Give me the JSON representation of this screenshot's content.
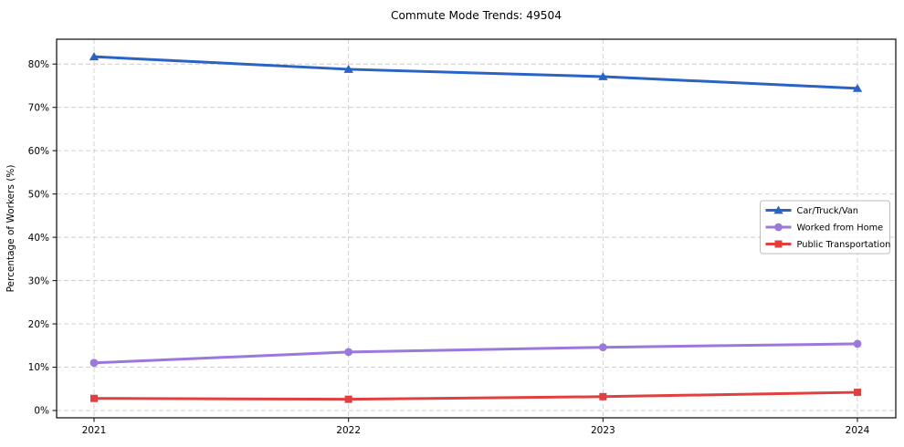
{
  "chart_data": {
    "type": "line",
    "title": "Commute Mode Trends: 49504",
    "xlabel": "",
    "ylabel": "Percentage of Workers (%)",
    "categories": [
      "2021",
      "2022",
      "2023",
      "2024"
    ],
    "series": [
      {
        "name": "Car/Truck/Van",
        "color": "#2b63c4",
        "marker": "triangle",
        "values": [
          81.7,
          78.8,
          77.1,
          74.4
        ]
      },
      {
        "name": "Worked from Home",
        "color": "#9b78dc",
        "marker": "circle",
        "values": [
          11.0,
          13.5,
          14.6,
          15.4
        ]
      },
      {
        "name": "Public Transportation",
        "color": "#e04040",
        "marker": "square",
        "values": [
          2.8,
          2.6,
          3.2,
          4.2
        ]
      }
    ],
    "y_tick_values": [
      0,
      10,
      20,
      30,
      40,
      50,
      60,
      70,
      80
    ],
    "y_tick_labels": [
      "0%",
      "10%",
      "20%",
      "30%",
      "40%",
      "50%",
      "60%",
      "70%",
      "80%"
    ],
    "ylim": [
      0,
      86
    ],
    "grid": true,
    "grid_style": "dashed",
    "legend_position": "center-right",
    "colors": {
      "grid": "#cccccc",
      "spine": "#1a1a1a",
      "tick": "#1a1a1a",
      "text": "#000000",
      "background": "#ffffff",
      "legend_border": "#bdbdbd",
      "legend_fill": "#ffffff"
    }
  }
}
